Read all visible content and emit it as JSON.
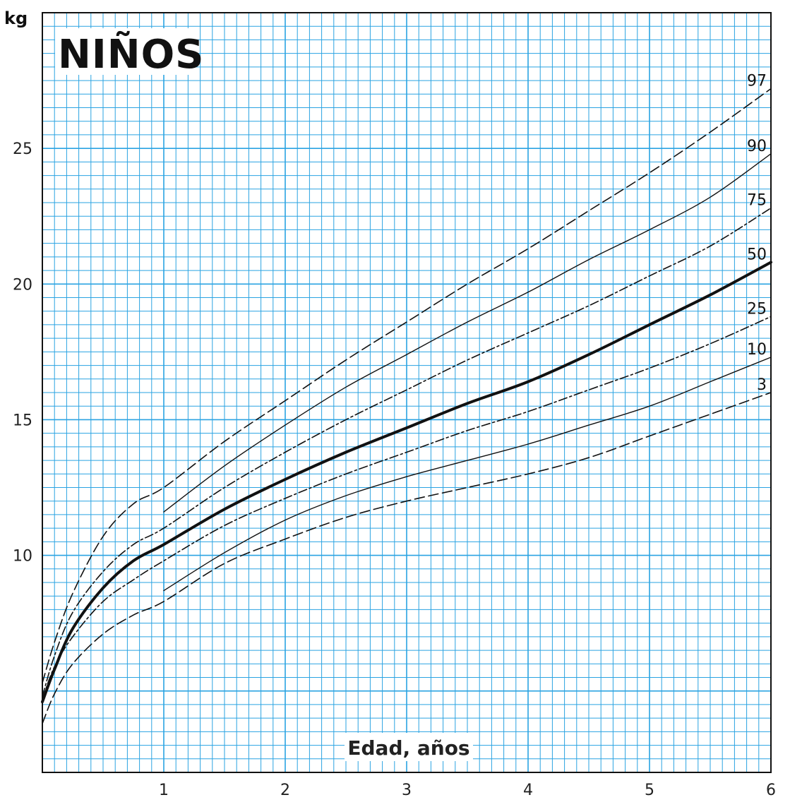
{
  "chart_data": {
    "type": "line",
    "title": "NIÑOS",
    "xlabel": "Edad, años",
    "ylabel": "kg",
    "xlim": [
      0,
      6
    ],
    "ylim": [
      2,
      30
    ],
    "grid": true,
    "grid_color": "#2aa3e2",
    "line_color": "#111111",
    "x_ticks": [
      1,
      2,
      3,
      4,
      5,
      6
    ],
    "y_ticks": [
      10,
      15,
      20,
      25
    ],
    "series": [
      {
        "name": "97",
        "style": "long-dash",
        "points": [
          [
            0,
            5.3
          ],
          [
            0.1,
            6.8
          ],
          [
            0.25,
            8.6
          ],
          [
            0.5,
            10.7
          ],
          [
            0.75,
            11.9
          ],
          [
            1,
            12.5
          ],
          [
            1.5,
            14.2
          ],
          [
            2,
            15.7
          ],
          [
            2.5,
            17.2
          ],
          [
            3,
            18.6
          ],
          [
            3.5,
            20.0
          ],
          [
            4,
            21.3
          ],
          [
            4.5,
            22.7
          ],
          [
            5,
            24.1
          ],
          [
            5.5,
            25.6
          ],
          [
            6,
            27.2
          ]
        ]
      },
      {
        "name": "90",
        "style": "solid",
        "points": [
          [
            1,
            11.6
          ],
          [
            1.5,
            13.3
          ],
          [
            2,
            14.8
          ],
          [
            2.5,
            16.2
          ],
          [
            3,
            17.4
          ],
          [
            3.5,
            18.6
          ],
          [
            4,
            19.7
          ],
          [
            4.5,
            20.9
          ],
          [
            5,
            22.0
          ],
          [
            5.5,
            23.2
          ],
          [
            6,
            24.8
          ]
        ]
      },
      {
        "name": "75",
        "style": "dash-dot",
        "points": [
          [
            0,
            4.8
          ],
          [
            0.1,
            6.3
          ],
          [
            0.25,
            7.9
          ],
          [
            0.5,
            9.4
          ],
          [
            0.75,
            10.4
          ],
          [
            1,
            11.0
          ],
          [
            1.5,
            12.5
          ],
          [
            2,
            13.8
          ],
          [
            2.5,
            15.0
          ],
          [
            3,
            16.1
          ],
          [
            3.5,
            17.2
          ],
          [
            4,
            18.2
          ],
          [
            4.5,
            19.2
          ],
          [
            5,
            20.3
          ],
          [
            5.5,
            21.4
          ],
          [
            6,
            22.8
          ]
        ]
      },
      {
        "name": "50",
        "style": "bold",
        "points": [
          [
            0,
            4.6
          ],
          [
            0.1,
            5.8
          ],
          [
            0.25,
            7.3
          ],
          [
            0.5,
            8.8
          ],
          [
            0.75,
            9.8
          ],
          [
            1,
            10.4
          ],
          [
            1.5,
            11.7
          ],
          [
            2,
            12.8
          ],
          [
            2.5,
            13.8
          ],
          [
            3,
            14.7
          ],
          [
            3.5,
            15.6
          ],
          [
            4,
            16.4
          ],
          [
            4.5,
            17.4
          ],
          [
            5,
            18.5
          ],
          [
            5.5,
            19.6
          ],
          [
            6,
            20.8
          ]
        ]
      },
      {
        "name": "25",
        "style": "dash-dot",
        "points": [
          [
            0,
            4.7
          ],
          [
            0.1,
            5.9
          ],
          [
            0.25,
            7.0
          ],
          [
            0.5,
            8.3
          ],
          [
            0.75,
            9.1
          ],
          [
            1,
            9.8
          ],
          [
            1.5,
            11.1
          ],
          [
            2,
            12.1
          ],
          [
            2.5,
            13.0
          ],
          [
            3,
            13.8
          ],
          [
            3.5,
            14.6
          ],
          [
            4,
            15.3
          ],
          [
            4.5,
            16.1
          ],
          [
            5,
            16.9
          ],
          [
            5.5,
            17.8
          ],
          [
            6,
            18.8
          ]
        ]
      },
      {
        "name": "10",
        "style": "solid",
        "points": [
          [
            1,
            8.7
          ],
          [
            1.5,
            10.1
          ],
          [
            2,
            11.3
          ],
          [
            2.5,
            12.2
          ],
          [
            3,
            12.9
          ],
          [
            3.5,
            13.5
          ],
          [
            4,
            14.1
          ],
          [
            4.5,
            14.8
          ],
          [
            5,
            15.5
          ],
          [
            5.5,
            16.4
          ],
          [
            6,
            17.3
          ]
        ]
      },
      {
        "name": "3",
        "style": "long-dash",
        "points": [
          [
            0,
            3.8
          ],
          [
            0.1,
            4.9
          ],
          [
            0.25,
            6.0
          ],
          [
            0.5,
            7.1
          ],
          [
            0.75,
            7.8
          ],
          [
            1,
            8.3
          ],
          [
            1.5,
            9.7
          ],
          [
            2,
            10.6
          ],
          [
            2.5,
            11.4
          ],
          [
            3,
            12.0
          ],
          [
            3.5,
            12.5
          ],
          [
            4,
            13.0
          ],
          [
            4.5,
            13.6
          ],
          [
            5,
            14.4
          ],
          [
            5.5,
            15.2
          ],
          [
            6,
            16.0
          ]
        ]
      }
    ]
  }
}
